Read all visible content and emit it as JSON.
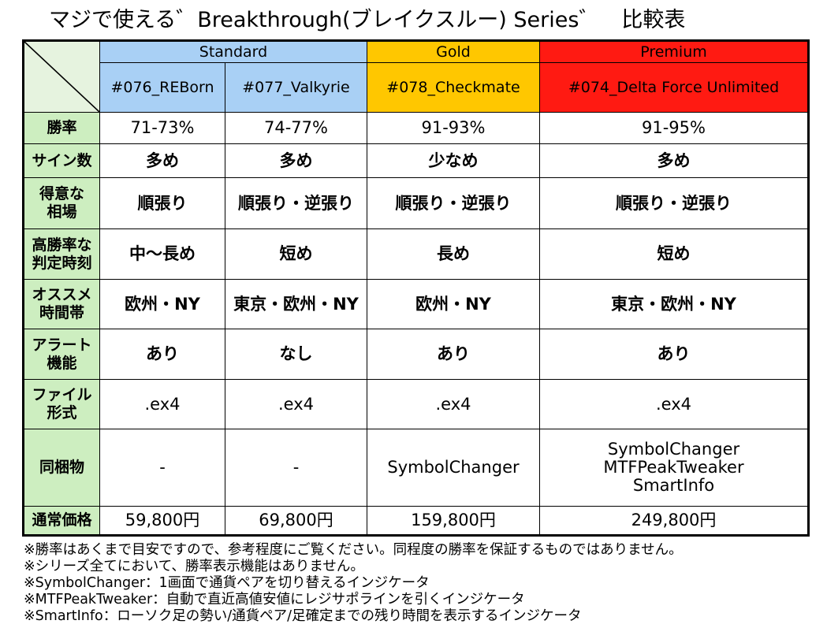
{
  "title": "マジで使える゛Breakthrough(ブレイクスルー) Series゛　比較表",
  "tiers": {
    "standard": "Standard",
    "gold": "Gold",
    "premium": "Premium"
  },
  "products": [
    "#076_REBorn",
    "#077_Valkyrie",
    "#078_Checkmate",
    "#074_Delta Force Unlimited"
  ],
  "rows": [
    {
      "label": "勝率",
      "values": [
        "71-73%",
        "74-77%",
        "91-93%",
        "91-95%"
      ]
    },
    {
      "label": "サイン数",
      "values": [
        "多め",
        "多め",
        "少なめ",
        "多め"
      ]
    },
    {
      "label": "得意な\n相場",
      "values": [
        "順張り",
        "順張り・逆張り",
        "順張り・逆張り",
        "順張り・逆張り"
      ]
    },
    {
      "label": "高勝率な\n判定時刻",
      "values": [
        "中～長め",
        "短め",
        "長め",
        "短め"
      ]
    },
    {
      "label": "オススメ\n時間帯",
      "values": [
        "欧州・NY",
        "東京・欧州・NY",
        "欧州・NY",
        "東京・欧州・NY"
      ]
    },
    {
      "label": "アラート\n機能",
      "values": [
        "あり",
        "なし",
        "あり",
        "あり"
      ]
    },
    {
      "label": "ファイル\n形式",
      "values": [
        ".ex4",
        ".ex4",
        ".ex4",
        ".ex4"
      ]
    },
    {
      "label": "同梱物",
      "values": [
        "-",
        "-",
        "SymbolChanger",
        "SymbolChanger\nMTFPeakTweaker\nSmartInfo"
      ]
    },
    {
      "label": "通常価格",
      "values": [
        "59,800円",
        "69,800円",
        "159,800円",
        "249,800円"
      ]
    }
  ],
  "notes": [
    "※勝率はあくまで目安ですので、参考程度にご覧ください。同程度の勝率を保証するものではありません。",
    "※シリーズ全てにおいて、勝率表示機能はありません。",
    "※SymbolChanger：1画面で通貨ペアを切り替えるインジケータ",
    "※MTFPeakTweaker：自動で直近高値安値にレジサポラインを引くインジケータ",
    "※SmartInfo：ローソク足の勢い/通貨ペア/足確定までの残り時間を表示するインジケータ"
  ],
  "colors": {
    "standard": "#a9d0f5",
    "gold": "#ffc700",
    "premium": "#ff1a12",
    "row_header": "#cdeec0",
    "corner": "#e6f3df"
  }
}
